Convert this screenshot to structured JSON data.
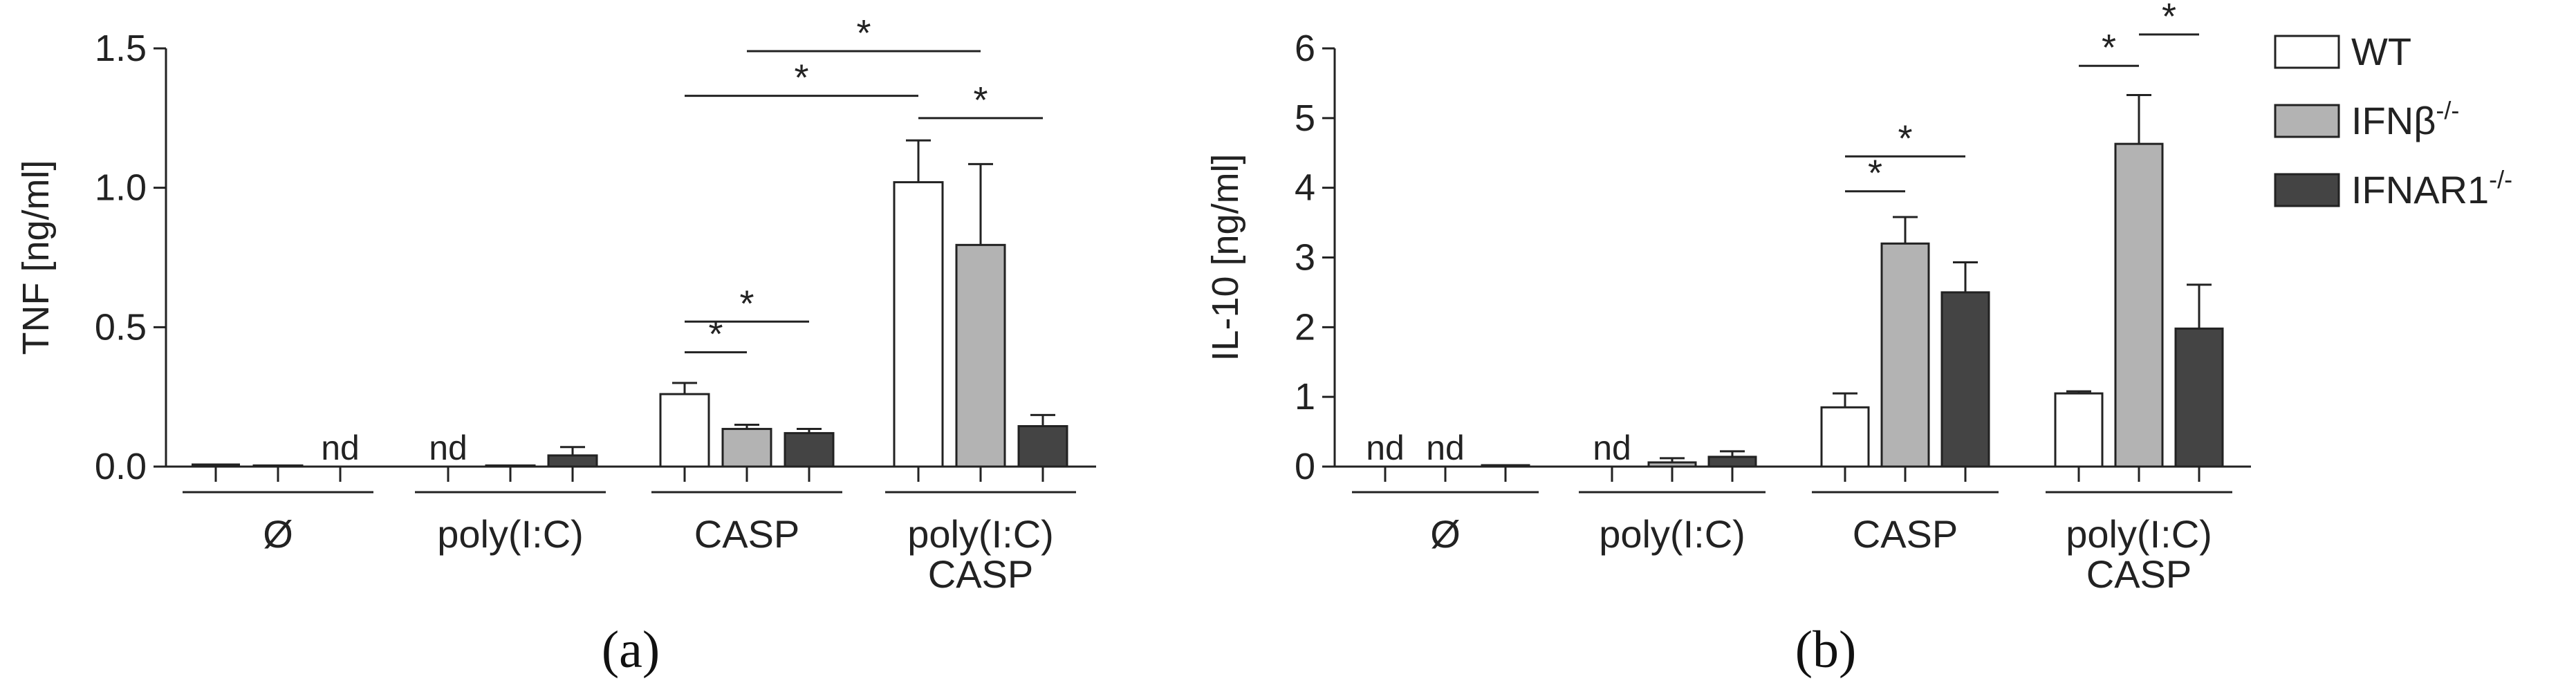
{
  "legend": [
    {
      "label": "WT",
      "sup": "",
      "color": "#ffffff"
    },
    {
      "label": "IFNβ",
      "sup": "-/-",
      "color": "#b3b3b3"
    },
    {
      "label": "IFNAR1",
      "sup": "-/-",
      "color": "#444444"
    }
  ],
  "chart_data": [
    {
      "type": "bar",
      "panel_label": "(a)",
      "ylabel": "TNF [ng/ml]",
      "ylim": [
        0,
        1.5
      ],
      "yticks": [
        "0.0",
        "0.5",
        "1.0",
        "1.5"
      ],
      "ytick_values": [
        0,
        0.5,
        1.0,
        1.5
      ],
      "categories": [
        [
          "Ø"
        ],
        [
          "poly(I:C)"
        ],
        [
          "CASP"
        ],
        [
          "poly(I:C)",
          "CASP"
        ]
      ],
      "series": [
        {
          "name": "WT",
          "values": [
            0,
            0,
            0.26,
            1.02
          ],
          "errors": [
            0,
            0,
            0.04,
            0.15
          ],
          "nd": [
            false,
            true,
            false,
            false
          ]
        },
        {
          "name": "IFNβ-/-",
          "values": [
            0.004,
            0.004,
            0.135,
            0.795
          ],
          "errors": [
            0,
            0,
            0.015,
            0.29
          ],
          "nd": [
            false,
            false,
            false,
            false
          ]
        },
        {
          "name": "IFNAR1-/-",
          "values": [
            0,
            0.04,
            0.12,
            0.145
          ],
          "errors": [
            0,
            0.03,
            0.015,
            0.04
          ],
          "nd": [
            true,
            false,
            false,
            false
          ]
        }
      ],
      "nd_label": "nd",
      "significance": [
        {
          "group": 2,
          "from": 0,
          "to": 1,
          "y": 0.41,
          "label": "*"
        },
        {
          "group": 2,
          "from": 0,
          "to": 2,
          "y": 0.52,
          "label": "*"
        },
        {
          "group": 3,
          "from": 0,
          "to": 2,
          "y": 1.25,
          "label": "*"
        },
        {
          "group_from": 2,
          "from": 0,
          "group_to": 3,
          "to": 0,
          "y": 1.33,
          "label": "*"
        },
        {
          "group_from": 2,
          "from": 1,
          "group_to": 3,
          "to": 1,
          "y": 1.49,
          "label": "*"
        }
      ]
    },
    {
      "type": "bar",
      "panel_label": "(b)",
      "ylabel": "IL-10 [ng/ml]",
      "ylim": [
        0,
        6
      ],
      "yticks": [
        "0",
        "1",
        "2",
        "3",
        "4",
        "5",
        "6"
      ],
      "ytick_values": [
        0,
        1,
        2,
        3,
        4,
        5,
        6
      ],
      "categories": [
        [
          "Ø"
        ],
        [
          "poly(I:C)"
        ],
        [
          "CASP"
        ],
        [
          "poly(I:C)",
          "CASP"
        ]
      ],
      "series": [
        {
          "name": "WT",
          "values": [
            0,
            0,
            0.85,
            1.05
          ],
          "errors": [
            0,
            0,
            0.2,
            0.03
          ],
          "nd": [
            true,
            true,
            false,
            false
          ]
        },
        {
          "name": "IFNβ-/-",
          "values": [
            0,
            0.06,
            3.2,
            4.63
          ],
          "errors": [
            0,
            0.06,
            0.38,
            0.7
          ],
          "nd": [
            true,
            false,
            false,
            false
          ]
        },
        {
          "name": "IFNAR1-/-",
          "values": [
            0.02,
            0.14,
            2.5,
            1.98
          ],
          "errors": [
            0,
            0.08,
            0.43,
            0.63
          ],
          "nd": [
            false,
            false,
            false,
            false
          ]
        }
      ],
      "nd_label": "nd",
      "significance": [
        {
          "group": 2,
          "from": 0,
          "to": 1,
          "y": 3.95,
          "label": "*"
        },
        {
          "group": 2,
          "from": 0,
          "to": 2,
          "y": 4.45,
          "label": "*"
        },
        {
          "group": 3,
          "from": 0,
          "to": 1,
          "y": 5.75,
          "label": "*"
        },
        {
          "group": 3,
          "from": 1,
          "to": 2,
          "y": 6.2,
          "label": "*"
        }
      ]
    }
  ]
}
